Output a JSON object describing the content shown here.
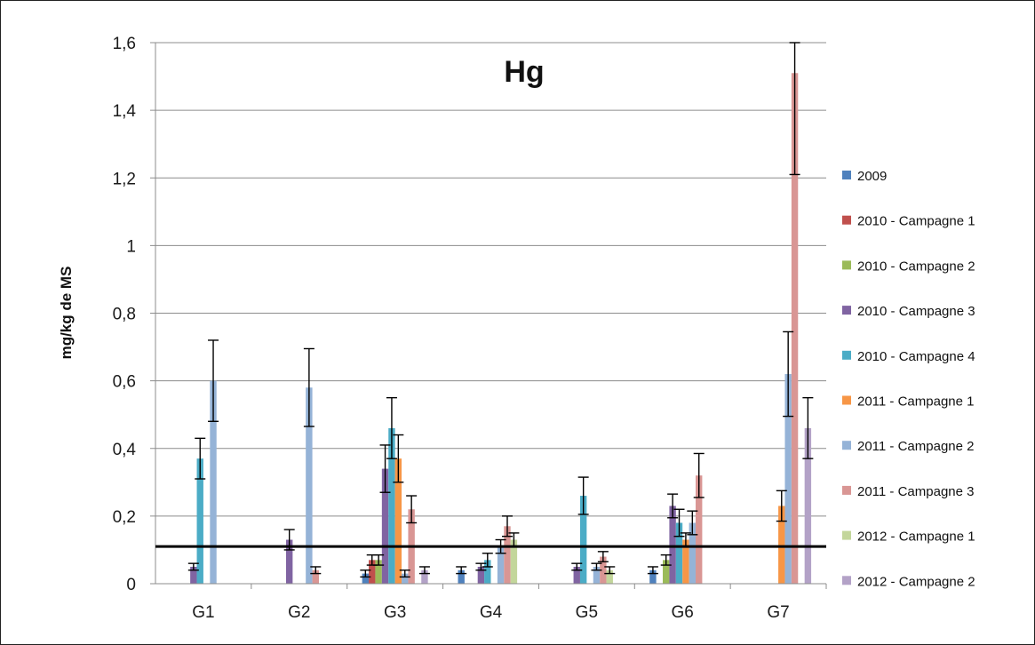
{
  "chart_data": {
    "type": "bar",
    "title": "Hg",
    "ylabel": "mg/kg de MS",
    "xlabel": "",
    "ylim": [
      0,
      1.6
    ],
    "yticks": [
      "0",
      "0,2",
      "0,4",
      "0,6",
      "0,8",
      "1",
      "1,2",
      "1,4",
      "1,6"
    ],
    "categories": [
      "G1",
      "G2",
      "G3",
      "G4",
      "G5",
      "G6",
      "G7"
    ],
    "reference_line": 0.11,
    "legend_position": "right",
    "series": [
      {
        "name": "2009",
        "color": "#4F81BD",
        "values": [
          null,
          null,
          0.03,
          0.04,
          null,
          0.04,
          null
        ],
        "errors": [
          null,
          null,
          0.01,
          0.01,
          null,
          0.01,
          null
        ]
      },
      {
        "name": "2010 - Campagne 1",
        "color": "#C0504D",
        "values": [
          null,
          null,
          0.07,
          null,
          null,
          null,
          null
        ],
        "errors": [
          null,
          null,
          0.015,
          null,
          null,
          null,
          null
        ]
      },
      {
        "name": "2010 - Campagne 2",
        "color": "#9BBB59",
        "values": [
          null,
          null,
          0.07,
          null,
          null,
          0.07,
          null
        ],
        "errors": [
          null,
          null,
          0.015,
          null,
          null,
          0.015,
          null
        ]
      },
      {
        "name": "2010 - Campagne 3",
        "color": "#8064A2",
        "values": [
          0.05,
          0.13,
          0.34,
          0.05,
          0.05,
          0.23,
          null
        ],
        "errors": [
          0.01,
          0.03,
          0.07,
          0.01,
          0.01,
          0.035,
          null
        ]
      },
      {
        "name": "2010 - Campagne 4",
        "color": "#4BACC6",
        "values": [
          0.37,
          null,
          0.46,
          0.07,
          0.26,
          0.18,
          null
        ],
        "errors": [
          0.06,
          null,
          0.09,
          0.02,
          0.055,
          0.04,
          null
        ]
      },
      {
        "name": "2011 - Campagne 1",
        "color": "#F79646",
        "values": [
          null,
          null,
          0.37,
          null,
          null,
          0.13,
          0.23
        ],
        "errors": [
          null,
          null,
          0.07,
          null,
          null,
          0.02,
          0.045
        ]
      },
      {
        "name": "2011 - Campagne 2",
        "color": "#95B3D7",
        "values": [
          0.6,
          0.58,
          0.03,
          0.11,
          0.05,
          0.18,
          0.62
        ],
        "errors": [
          0.12,
          0.115,
          0.01,
          0.02,
          0.01,
          0.035,
          0.125
        ]
      },
      {
        "name": "2011 - Campagne 3",
        "color": "#D99694",
        "values": [
          null,
          0.04,
          0.22,
          0.17,
          0.08,
          0.32,
          1.51
        ],
        "errors": [
          null,
          0.01,
          0.04,
          0.03,
          0.015,
          0.065,
          0.3
        ]
      },
      {
        "name": "2012 - Campagne 1",
        "color": "#C3D69B",
        "values": [
          null,
          null,
          null,
          0.13,
          0.04,
          null,
          null
        ],
        "errors": [
          null,
          null,
          null,
          0.02,
          0.01,
          null,
          null
        ]
      },
      {
        "name": "2012 - Campagne 2",
        "color": "#B3A2C7",
        "values": [
          null,
          null,
          0.04,
          null,
          null,
          null,
          0.46
        ],
        "errors": [
          null,
          null,
          0.01,
          null,
          null,
          null,
          0.09
        ]
      }
    ]
  }
}
